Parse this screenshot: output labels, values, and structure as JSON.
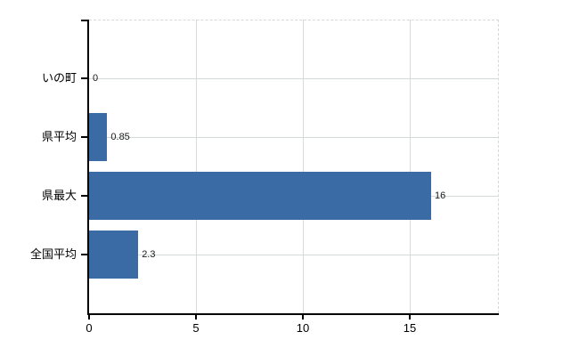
{
  "chart_data": {
    "type": "bar",
    "orientation": "horizontal",
    "title": "",
    "categories": [
      "いの町",
      "県平均",
      "県最大",
      "全国平均"
    ],
    "values": [
      0,
      0.85,
      16,
      2.3
    ],
    "value_labels": [
      "0",
      "0.85",
      "16",
      "2.3"
    ],
    "x_ticks": [
      0,
      5,
      10,
      15
    ],
    "x_tick_labels": [
      "0",
      "5",
      "10",
      "15"
    ],
    "xlim": [
      0,
      19.17
    ],
    "grid": true,
    "legend": false
  },
  "colors": {
    "bar": "#3B6BA5",
    "axis": "#000000",
    "h_gridline": "#d4dbd4",
    "v_gridline": "#d9d9d9",
    "dashed_border": "#d8d8d8",
    "text": "#000000",
    "background": "#ffffff"
  }
}
